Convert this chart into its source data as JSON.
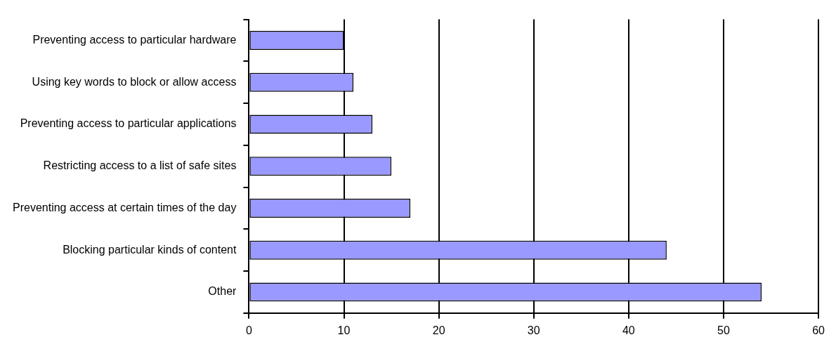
{
  "chart_data": {
    "type": "bar",
    "orientation": "horizontal",
    "categories": [
      "Preventing access to particular hardware",
      "Using key words to block or allow access",
      "Preventing access to particular applications",
      "Restricting access to a list of safe sites",
      "Preventing access at certain times of the day",
      "Blocking particular kinds of content",
      "Other"
    ],
    "values": [
      10,
      11,
      13,
      15,
      17,
      44,
      54
    ],
    "color": "#9999ff",
    "xlim": [
      0,
      60
    ],
    "xticks": [
      0,
      10,
      20,
      30,
      40,
      50,
      60
    ],
    "grid": "x",
    "legend": false
  }
}
